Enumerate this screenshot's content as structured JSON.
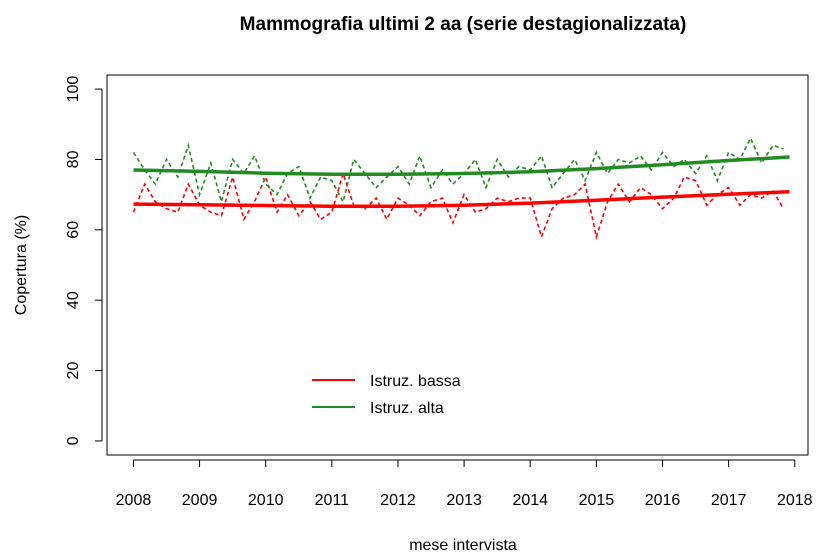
{
  "chart_data": {
    "type": "line",
    "title": "Mammografia ultimi 2 aa (serie destagionalizzata)",
    "x_label": "mese intervista",
    "y_label": "Copertura (%)",
    "xlim": [
      2007.6,
      2018.2
    ],
    "ylim": [
      -4,
      104
    ],
    "xticks": [
      2008,
      2009,
      2010,
      2011,
      2012,
      2013,
      2014,
      2015,
      2016,
      2017,
      2018
    ],
    "yticks": [
      0,
      20,
      40,
      60,
      80,
      100
    ],
    "legend": "bottom-left",
    "x": [
      2008,
      2008.17,
      2008.33,
      2008.5,
      2008.67,
      2008.83,
      2009,
      2009.17,
      2009.33,
      2009.5,
      2009.67,
      2009.83,
      2010,
      2010.17,
      2010.33,
      2010.5,
      2010.67,
      2010.83,
      2011,
      2011.17,
      2011.33,
      2011.5,
      2011.67,
      2011.83,
      2012,
      2012.17,
      2012.33,
      2012.5,
      2012.67,
      2012.83,
      2013,
      2013.17,
      2013.33,
      2013.5,
      2013.67,
      2013.83,
      2014,
      2014.17,
      2014.33,
      2014.5,
      2014.67,
      2014.83,
      2015,
      2015.17,
      2015.33,
      2015.5,
      2015.67,
      2015.83,
      2016,
      2016.17,
      2016.33,
      2016.5,
      2016.67,
      2016.83,
      2017,
      2017.17,
      2017.33,
      2017.5,
      2017.67,
      2017.83
    ],
    "trend_x": [
      2008,
      2009,
      2010,
      2011,
      2012,
      2013,
      2014,
      2015,
      2016,
      2017,
      2017.92
    ],
    "series": [
      {
        "name": "Istruz. bassa",
        "color": "#ff0000",
        "values": [
          65,
          73,
          68,
          66,
          65,
          73,
          67,
          65,
          64,
          75,
          63,
          68,
          75,
          65,
          70,
          64,
          68,
          63,
          65,
          76,
          67,
          66,
          69,
          63,
          69,
          67,
          64,
          68,
          69,
          62,
          70,
          65,
          66,
          69,
          68,
          69,
          69,
          58,
          66,
          69,
          70,
          73,
          58,
          68,
          73,
          68,
          72,
          70,
          66,
          69,
          75,
          74,
          67,
          70,
          72,
          67,
          70,
          69,
          71,
          66
        ],
        "trend": [
          67.3,
          67.1,
          66.9,
          66.7,
          66.7,
          67.0,
          67.6,
          68.4,
          69.3,
          70.1,
          70.8
        ]
      },
      {
        "name": "Istruz. alta",
        "color": "#228b22",
        "values": [
          82,
          77,
          73,
          80,
          75,
          84,
          70,
          79,
          68,
          80,
          76,
          81,
          73,
          70,
          76,
          78,
          69,
          75,
          74,
          68,
          80,
          76,
          72,
          75,
          78,
          73,
          81,
          72,
          77,
          73,
          76,
          80,
          72,
          80,
          75,
          78,
          77,
          81,
          72,
          76,
          80,
          74,
          82,
          76,
          80,
          79,
          81,
          77,
          82,
          78,
          80,
          76,
          81,
          74,
          82,
          80,
          86,
          79,
          84,
          83
        ],
        "trend": [
          77.0,
          76.6,
          76.1,
          75.8,
          75.8,
          76.0,
          76.5,
          77.4,
          78.5,
          79.7,
          80.7
        ]
      }
    ]
  }
}
